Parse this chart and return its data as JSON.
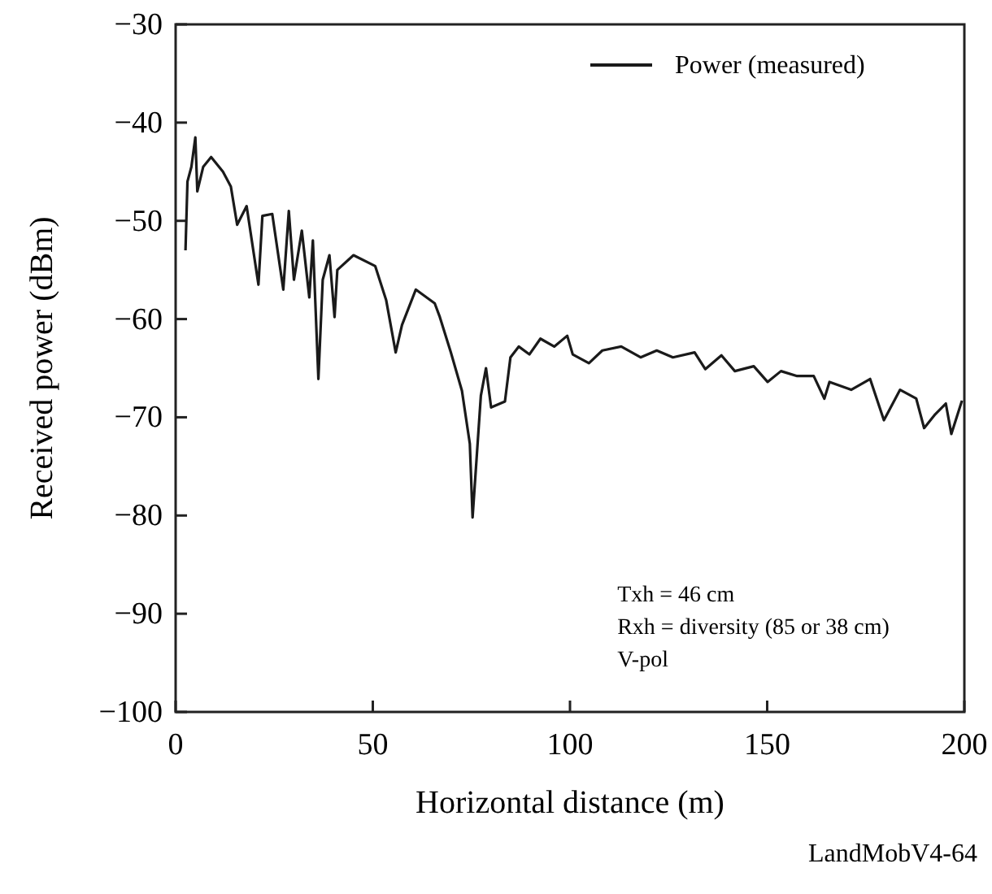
{
  "chart_data": {
    "type": "line",
    "xlabel": "Horizontal distance (m)",
    "ylabel": "Received power (dBm)",
    "xlim": [
      0,
      200
    ],
    "xticks": [
      0,
      50,
      100,
      150,
      200
    ],
    "ylim": [
      -100,
      -30
    ],
    "yticks": [
      -100,
      -90,
      -80,
      -70,
      -60,
      -50,
      -40,
      -30
    ],
    "grid": false,
    "legend": "top right",
    "line_style": "solid",
    "annotations": [
      "Txh = 46 cm",
      "Rxh = diversity (85 or 38 cm)",
      "V-pol",
      "LandMobV4-64"
    ],
    "series": [
      {
        "name": "Power (measured)",
        "color": "#1a1a1a",
        "x": [
          2.5,
          3,
          4,
          5,
          5.5,
          7,
          9,
          12,
          14,
          15.6,
          18,
          21,
          22,
          24.5,
          27.3,
          28.7,
          30,
          32,
          33.9,
          34.8,
          36.2,
          37.3,
          39,
          40.3,
          41,
          45.1,
          50.6,
          53.4,
          55.8,
          57.4,
          60.9,
          65.7,
          67,
          69.8,
          72.6,
          74.6,
          75.3,
          77.4,
          78.7,
          80,
          83.5,
          84.9,
          87,
          89.7,
          92.5,
          96,
          99.3,
          100.7,
          104.8,
          108.2,
          113,
          117.9,
          122,
          126.1,
          131.6,
          134.3,
          138.4,
          141.8,
          146.6,
          150.1,
          153.5,
          157.6,
          161.8,
          164.5,
          165.8,
          171.3,
          176.1,
          179.6,
          183.7,
          187.8,
          189.8,
          192.6,
          195.3,
          196.7,
          199.4
        ],
        "values": [
          -53,
          -46,
          -44.5,
          -41.5,
          -47,
          -44.5,
          -43.5,
          -45,
          -46.5,
          -50.4,
          -48.5,
          -56.5,
          -49.5,
          -49.3,
          -57,
          -49,
          -56,
          -51,
          -57.8,
          -52,
          -66.1,
          -56,
          -53.5,
          -59.8,
          -55,
          -53.5,
          -54.6,
          -58.1,
          -63.4,
          -60.6,
          -57,
          -58.4,
          -59.8,
          -63.4,
          -67.3,
          -72.7,
          -80.2,
          -67.8,
          -65,
          -69,
          -68.4,
          -63.9,
          -62.8,
          -63.6,
          -62,
          -62.8,
          -61.7,
          -63.6,
          -64.5,
          -63.2,
          -62.8,
          -63.9,
          -63.2,
          -63.9,
          -63.4,
          -65.1,
          -63.7,
          -65.3,
          -64.8,
          -66.4,
          -65.3,
          -65.8,
          -65.8,
          -68.1,
          -66.4,
          -67.2,
          -66.1,
          -70.3,
          -67.2,
          -68.1,
          -71.1,
          -69.7,
          -68.6,
          -71.7,
          -68.3
        ]
      }
    ]
  }
}
